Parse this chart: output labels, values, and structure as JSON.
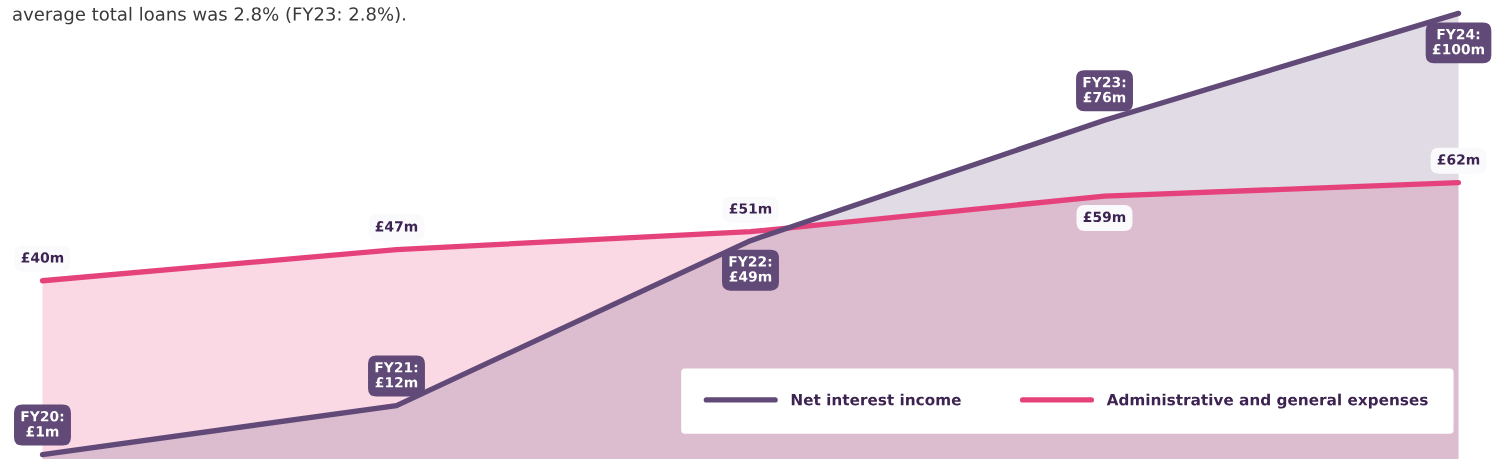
{
  "chart_data": {
    "type": "area",
    "annotations": [
      "average total loans was 2.8% (FY23: 2.8%)."
    ],
    "categories": [
      null,
      null,
      null,
      null,
      null
    ],
    "series": [
      {
        "name": "Net interest income",
        "color": "#624a78",
        "values": [
          1,
          12,
          49,
          76,
          100
        ],
        "value_labels": [
          "FY20:\n£1m",
          "FY21:\n£12m",
          "FY22:\n£49m",
          "FY23:\n£76m",
          "FY24:\n£100m"
        ]
      },
      {
        "name": "Administrative and general expenses",
        "color": "#e5427c",
        "values": [
          40,
          47,
          51,
          59,
          62
        ],
        "value_labels": [
          "£40m",
          "£47m",
          "£51m",
          "£59m",
          "£62m"
        ]
      }
    ],
    "ylim": [
      0,
      103
    ],
    "legend": "bottom right"
  }
}
